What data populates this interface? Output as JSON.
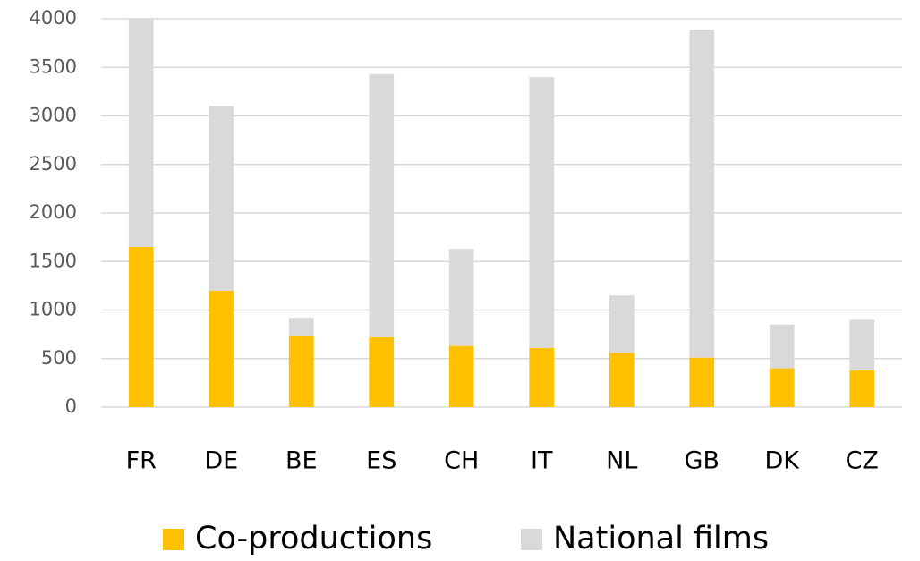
{
  "chart_data": {
    "type": "stacked_bar",
    "categories": [
      "FR",
      "DE",
      "BE",
      "ES",
      "CH",
      "IT",
      "NL",
      "GB",
      "DK",
      "CZ"
    ],
    "series": [
      {
        "name": "Co-productions",
        "color": "#ffc000",
        "values": [
          1650,
          1200,
          730,
          720,
          630,
          610,
          560,
          510,
          400,
          380
        ]
      },
      {
        "name": "National films",
        "color": "#d9d9d9",
        "values": [
          2350,
          1900,
          190,
          2710,
          1000,
          2790,
          590,
          3380,
          450,
          520
        ]
      }
    ],
    "ylim": [
      0,
      4000
    ],
    "yticks": [
      0,
      500,
      1000,
      1500,
      2000,
      2500,
      3000,
      3500,
      4000
    ],
    "grid": true,
    "legend": "bottom"
  }
}
